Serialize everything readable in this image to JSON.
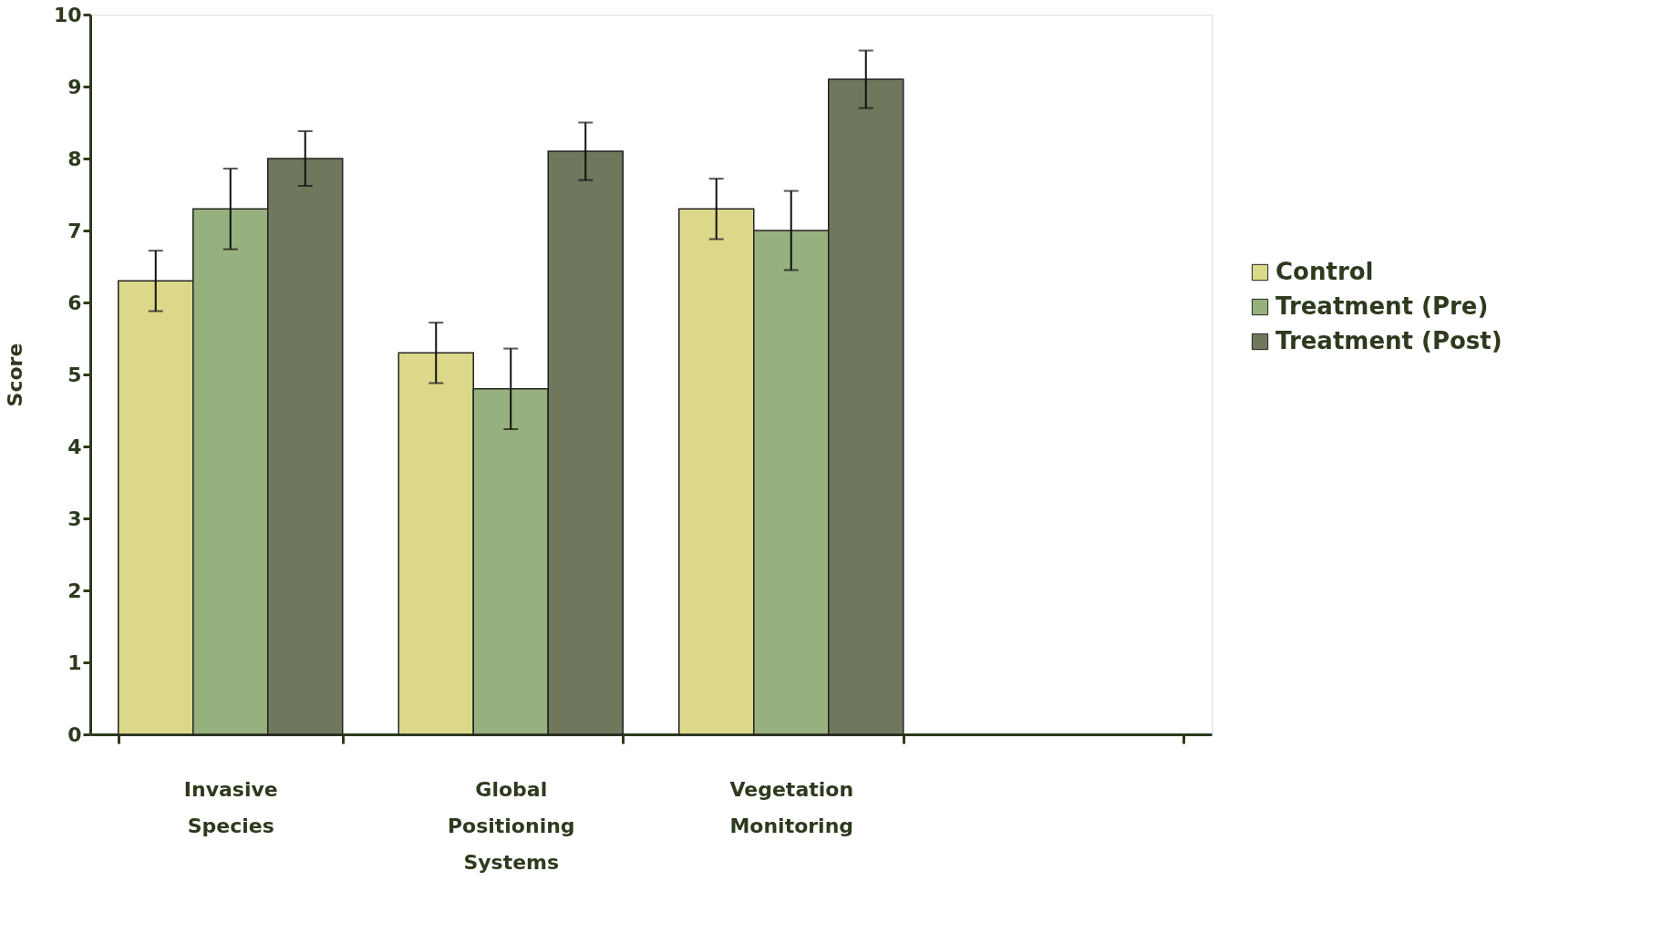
{
  "chart_data": {
    "type": "bar",
    "ylabel": "Score",
    "categories": [
      "Invasive Species",
      "Global Positioning Systems",
      "Vegetation Monitoring",
      null
    ],
    "series": [
      {
        "name": "Control",
        "color": "#dcd88a",
        "values": [
          6.3,
          5.3,
          7.3,
          null
        ],
        "errors": [
          0.42,
          0.42,
          0.42,
          null
        ]
      },
      {
        "name": "Treatment (Pre)",
        "color": "#97b17e",
        "values": [
          7.3,
          4.8,
          7.0,
          null
        ],
        "errors": [
          0.56,
          0.56,
          0.55,
          null
        ]
      },
      {
        "name": "Treatment (Post)",
        "color": "#6f775d",
        "values": [
          8.0,
          8.1,
          9.1,
          null
        ],
        "errors": [
          0.38,
          0.4,
          0.4,
          null
        ]
      }
    ],
    "ylim": [
      0,
      10
    ],
    "yticks": [
      0,
      1,
      2,
      3,
      4,
      5,
      6,
      7,
      8,
      9,
      10
    ],
    "grid": false,
    "legend": "right"
  }
}
